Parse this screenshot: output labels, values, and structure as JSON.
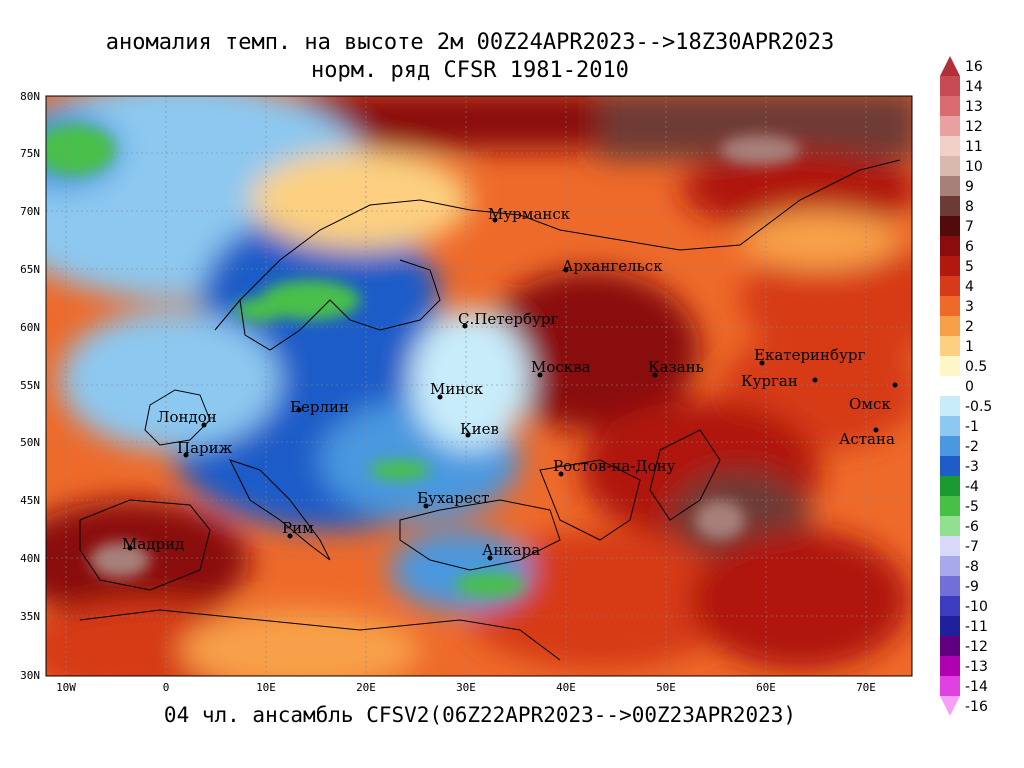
{
  "title": {
    "line1": "аномалия темп. на высоте 2м 00Z24APR2023-->18Z30APR2023",
    "line2": "норм. ряд CFSR 1981-2010"
  },
  "subtitle_bottom": "04 чл. ансамбль CFSV2(06Z22APR2023-->00Z23APR2023)",
  "lat_labels": [
    "80N",
    "75N",
    "70N",
    "65N",
    "60N",
    "55N",
    "50N",
    "45N",
    "40N",
    "35N",
    "30N"
  ],
  "lon_labels": [
    "10W",
    "0",
    "10E",
    "20E",
    "30E",
    "40E",
    "50E",
    "60E",
    "70E"
  ],
  "cities": [
    {
      "name": "Мурманск"
    },
    {
      "name": "Архангельск"
    },
    {
      "name": "С.Петербург"
    },
    {
      "name": "Москва"
    },
    {
      "name": "Казань"
    },
    {
      "name": "Екатеринбург"
    },
    {
      "name": "Курган"
    },
    {
      "name": "Омск"
    },
    {
      "name": "Астана"
    },
    {
      "name": "Минск"
    },
    {
      "name": "Киев"
    },
    {
      "name": "Берлин"
    },
    {
      "name": "Лондон"
    },
    {
      "name": "Париж"
    },
    {
      "name": "Ростов-на-Дону"
    },
    {
      "name": "Бухарест"
    },
    {
      "name": "Рим"
    },
    {
      "name": "Мадрид"
    },
    {
      "name": "Анкара"
    }
  ],
  "colorbar": [
    {
      "label": "16",
      "color": "#b0303a"
    },
    {
      "label": "14",
      "color": "#c84a52"
    },
    {
      "label": "13",
      "color": "#d86a70"
    },
    {
      "label": "12",
      "color": "#e8a0a0"
    },
    {
      "label": "11",
      "color": "#f2d0c8"
    },
    {
      "label": "10",
      "color": "#d9b8ae"
    },
    {
      "label": "9",
      "color": "#a8807a"
    },
    {
      "label": "8",
      "color": "#6e3a34"
    },
    {
      "label": "7",
      "color": "#520a0a"
    },
    {
      "label": "6",
      "color": "#8a0c0c"
    },
    {
      "label": "5",
      "color": "#b01810"
    },
    {
      "label": "4",
      "color": "#d63a18"
    },
    {
      "label": "3",
      "color": "#ee6a2a"
    },
    {
      "label": "2",
      "color": "#f8a048"
    },
    {
      "label": "1",
      "color": "#fcd080"
    },
    {
      "label": "0.5",
      "color": "#fff6c8"
    },
    {
      "label": "0",
      "color": "#ffffff"
    },
    {
      "label": "-0.5",
      "color": "#c8ecfa"
    },
    {
      "label": "-1",
      "color": "#8cc8f0"
    },
    {
      "label": "-2",
      "color": "#4a98e0"
    },
    {
      "label": "-3",
      "color": "#1e5cc8"
    },
    {
      "label": "-4",
      "color": "#1a9a30"
    },
    {
      "label": "-5",
      "color": "#48c048"
    },
    {
      "label": "-6",
      "color": "#90e090"
    },
    {
      "label": "-7",
      "color": "#d8d8f8"
    },
    {
      "label": "-8",
      "color": "#a8a8ec"
    },
    {
      "label": "-9",
      "color": "#7070d8"
    },
    {
      "label": "-10",
      "color": "#3c3cc0"
    },
    {
      "label": "-11",
      "color": "#20209c"
    },
    {
      "label": "-12",
      "color": "#600080"
    },
    {
      "label": "-13",
      "color": "#b000b0"
    },
    {
      "label": "-14",
      "color": "#e040e0"
    },
    {
      "label": "-16",
      "color": "#f8a0f8"
    }
  ]
}
